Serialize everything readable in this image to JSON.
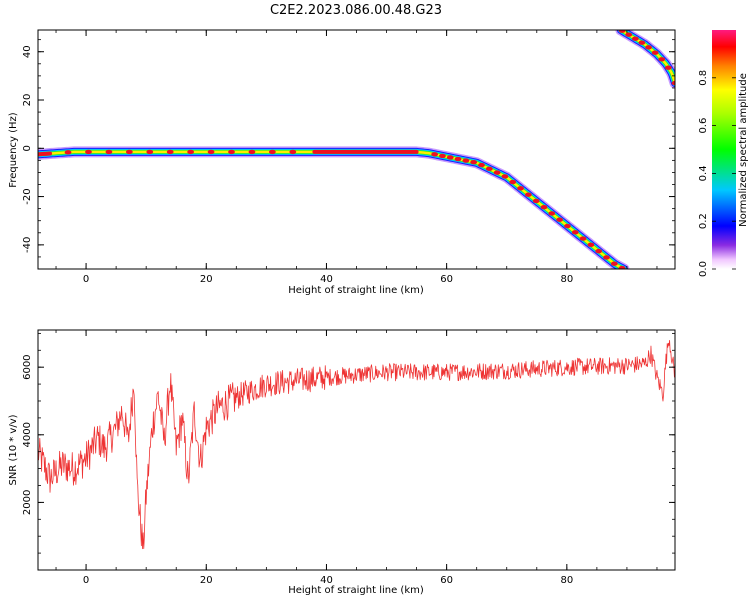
{
  "title": "C2E2.2023.086.00.48.G23",
  "chart_data": [
    {
      "type": "heatmap",
      "xlabel": "Height of straight line (km)",
      "ylabel": "Frequency (Hz)",
      "xlim": [
        -8,
        98
      ],
      "ylim": [
        -50,
        49
      ],
      "xticks": [
        0,
        20,
        40,
        60,
        80
      ],
      "yticks": [
        -40,
        -20,
        0,
        20,
        40
      ],
      "colorbar": {
        "label": "Normalized spectral amplitude",
        "range": [
          0,
          1
        ],
        "ticks": [
          0.0,
          0.2,
          0.4,
          0.6,
          0.8
        ],
        "tick_labels": [
          "0.0",
          "0.2",
          "0.4",
          "0.6",
          "0.8"
        ]
      },
      "ridge": {
        "x": [
          -8,
          -2,
          10,
          20,
          30,
          40,
          50,
          55,
          57,
          60,
          62,
          65,
          70,
          75,
          80,
          85,
          88,
          89.5
        ],
        "y": [
          -2.5,
          -1.5,
          -1.5,
          -1.5,
          -1.5,
          -1.5,
          -1.5,
          -1.5,
          -2,
          -3.5,
          -4.5,
          -6,
          -12,
          -22,
          -32,
          -42,
          -48,
          -50
        ]
      },
      "ridge_upper": {
        "x": [
          89,
          91,
          93,
          95,
          96.5,
          97.5,
          98
        ],
        "y": [
          49,
          46,
          43,
          39,
          35,
          31,
          27
        ]
      }
    },
    {
      "type": "line",
      "xlabel": "Height of straight line (km)",
      "ylabel": "SNR (10 * v/v)",
      "xlim": [
        -8,
        98
      ],
      "ylim": [
        0,
        7100
      ],
      "xticks": [
        0,
        20,
        40,
        60,
        80
      ],
      "yticks": [
        2000,
        4000,
        6000
      ],
      "color": "#ee3333",
      "trend": {
        "x": [
          -8,
          -6,
          -4,
          -2,
          0,
          2,
          3,
          5,
          6,
          7,
          8,
          8.5,
          9,
          9.5,
          10,
          11,
          12,
          13,
          14,
          15,
          16,
          17,
          18,
          19,
          20,
          22,
          24,
          26,
          30,
          35,
          40,
          50,
          60,
          70,
          80,
          90,
          93,
          94,
          95,
          96,
          96.5,
          97,
          98
        ],
        "y": [
          3500,
          2700,
          3100,
          3000,
          3300,
          3900,
          3600,
          4200,
          4700,
          3800,
          5600,
          2500,
          1500,
          600,
          2200,
          4200,
          5200,
          3800,
          5600,
          3600,
          4500,
          2600,
          4700,
          3200,
          4200,
          4800,
          5000,
          5200,
          5500,
          5600,
          5700,
          5850,
          5850,
          5900,
          6000,
          6050,
          6100,
          6400,
          5700,
          5200,
          6200,
          6900,
          5700
        ]
      }
    }
  ]
}
